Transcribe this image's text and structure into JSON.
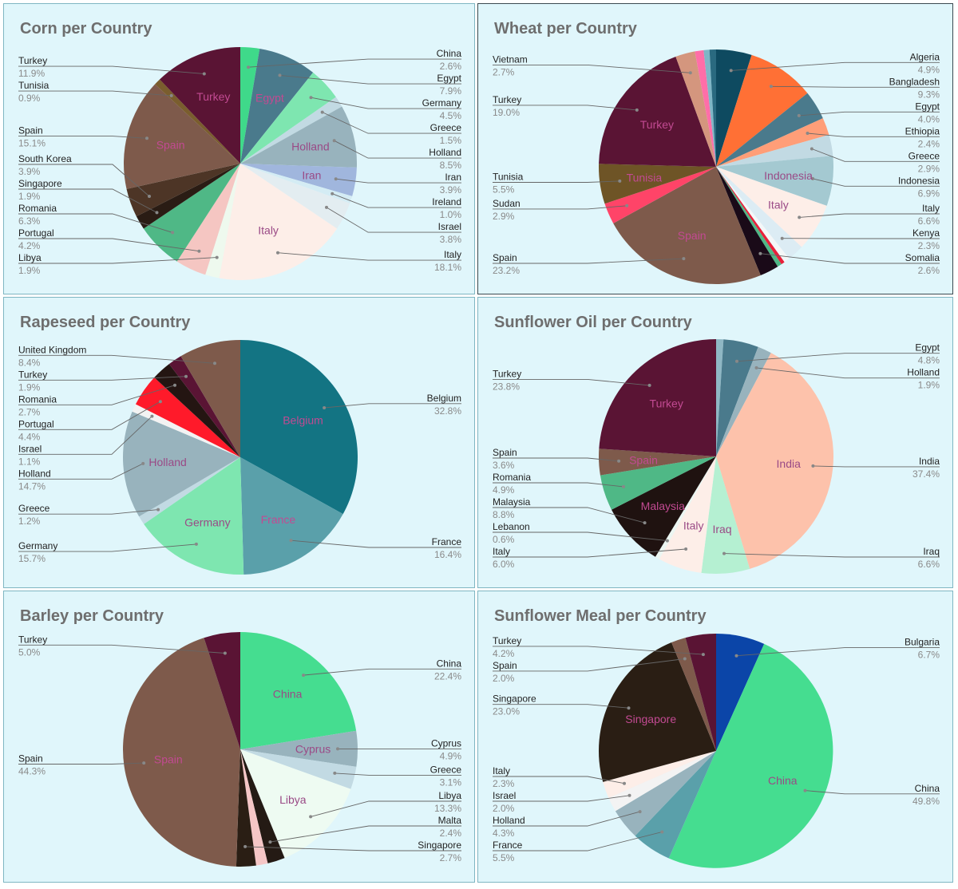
{
  "chart_data": [
    {
      "type": "pie",
      "title": "Corn per Country",
      "slices": [
        {
          "name": "China",
          "value": 2.6,
          "color": "#3fd98a"
        },
        {
          "name": "Egypt",
          "value": 7.9,
          "color": "#4a7a8c"
        },
        {
          "name": "Germany",
          "value": 4.5,
          "color": "#7ee6b0"
        },
        {
          "name": "Greece",
          "value": 1.5,
          "color": "#c2dae3"
        },
        {
          "name": "Holland",
          "value": 8.5,
          "color": "#98b3bd"
        },
        {
          "name": "Iran",
          "value": 3.9,
          "color": "#a0b6dd"
        },
        {
          "name": "Ireland",
          "value": 1.0,
          "color": "#d4ecf4"
        },
        {
          "name": "Israel",
          "value": 3.8,
          "color": "#e3edf1"
        },
        {
          "name": "Italy",
          "value": 18.1,
          "color": "#fdeee8"
        },
        {
          "name": "Libya",
          "value": 1.9,
          "color": "#eef9ee"
        },
        {
          "name": "Portugal",
          "value": 4.2,
          "color": "#f5c6c2"
        },
        {
          "name": "Romania",
          "value": 6.3,
          "color": "#4fb886"
        },
        {
          "name": "Singapore",
          "value": 1.9,
          "color": "#2a1c14"
        },
        {
          "name": "South Korea",
          "value": 3.9,
          "color": "#4d3526"
        },
        {
          "name": "Spain",
          "value": 15.1,
          "color": "#7e5a4b"
        },
        {
          "name": "Tunisia",
          "value": 0.9,
          "color": "#7a5d2e"
        },
        {
          "name": "Turkey",
          "value": 11.9,
          "color": "#5a1434"
        }
      ],
      "inside_labels": [
        "Egypt",
        "Holland",
        "Iran",
        "Italy",
        "Spain",
        "Turkey"
      ]
    },
    {
      "type": "pie",
      "title": "Wheat per Country",
      "slices": [
        {
          "name": "Algeria",
          "value": 4.9,
          "color": "#0e4a60"
        },
        {
          "name": "Bangladesh",
          "value": 9.3,
          "color": "#ff7035"
        },
        {
          "name": "Egypt",
          "value": 4.0,
          "color": "#4a7a8c"
        },
        {
          "name": "Ethiopia",
          "value": 2.4,
          "color": "#ff9e78"
        },
        {
          "name": "Greece",
          "value": 2.9,
          "color": "#c2dae3"
        },
        {
          "name": "Indonesia",
          "value": 6.9,
          "color": "#a4c9d1"
        },
        {
          "name": "Italy",
          "value": 6.6,
          "color": "#fdeee8"
        },
        {
          "name": "Kenya",
          "value": 2.3,
          "color": "#dcecf4"
        },
        {
          "name": "",
          "value": 0.8,
          "color": "#f4f7f8"
        },
        {
          "name": "",
          "value": 0.5,
          "color": "#e8203a"
        },
        {
          "name": "",
          "value": 0.6,
          "color": "#4fb886"
        },
        {
          "name": "Somalia",
          "value": 2.6,
          "color": "#1a0a18"
        },
        {
          "name": "Spain",
          "value": 23.2,
          "color": "#7e5a4b"
        },
        {
          "name": "Sudan",
          "value": 2.9,
          "color": "#ff4468"
        },
        {
          "name": "Tunisia",
          "value": 5.5,
          "color": "#6e5426"
        },
        {
          "name": "Turkey",
          "value": 19.0,
          "color": "#5a1434"
        },
        {
          "name": "Vietnam",
          "value": 2.7,
          "color": "#d4967e"
        },
        {
          "name": "",
          "value": 1.2,
          "color": "#ff6ea8"
        },
        {
          "name": "",
          "value": 0.8,
          "color": "#7fb6c6"
        },
        {
          "name": "",
          "value": 0.9,
          "color": "#2a6a80"
        }
      ],
      "inside_labels": [
        "Turkey",
        "Tunisia",
        "Spain",
        "Indonesia",
        "Italy"
      ]
    },
    {
      "type": "pie",
      "title": "Rapeseed per Country",
      "slices": [
        {
          "name": "Belgium",
          "value": 32.8,
          "color": "#137483"
        },
        {
          "name": "France",
          "value": 16.4,
          "color": "#5aa0aa"
        },
        {
          "name": "Germany",
          "value": 15.7,
          "color": "#7ee6b0"
        },
        {
          "name": "Greece",
          "value": 1.2,
          "color": "#c2dae3"
        },
        {
          "name": "Holland",
          "value": 14.7,
          "color": "#98b3bd"
        },
        {
          "name": "Israel",
          "value": 1.1,
          "color": "#f3f3f3"
        },
        {
          "name": "Portugal",
          "value": 4.4,
          "color": "#ff1a2a"
        },
        {
          "name": "Romania",
          "value": 2.7,
          "color": "#241512"
        },
        {
          "name": "Turkey",
          "value": 1.9,
          "color": "#5a1434"
        },
        {
          "name": "United Kingdom",
          "value": 8.4,
          "color": "#7e5a4b"
        }
      ],
      "inside_labels": [
        "Belgium",
        "France",
        "Germany",
        "Holland"
      ]
    },
    {
      "type": "pie",
      "title": "Sunflower Oil per Country",
      "slices": [
        {
          "name": "",
          "value": 1.0,
          "color": "#8fb7c4"
        },
        {
          "name": "Egypt",
          "value": 4.8,
          "color": "#4a7a8c"
        },
        {
          "name": "Holland",
          "value": 1.9,
          "color": "#98b3bd"
        },
        {
          "name": "India",
          "value": 37.4,
          "color": "#fdc2ab"
        },
        {
          "name": "Iraq",
          "value": 6.6,
          "color": "#b5f0d2"
        },
        {
          "name": "Italy",
          "value": 6.0,
          "color": "#fdeee8"
        },
        {
          "name": "Lebanon",
          "value": 0.6,
          "color": "#ecf6f2"
        },
        {
          "name": "Malaysia",
          "value": 8.8,
          "color": "#1f1210"
        },
        {
          "name": "Romania",
          "value": 4.9,
          "color": "#4fb886"
        },
        {
          "name": "Spain",
          "value": 3.6,
          "color": "#7e5a4b"
        },
        {
          "name": "Turkey",
          "value": 23.8,
          "color": "#5a1434"
        }
      ],
      "inside_labels": [
        "Turkey",
        "Spain",
        "India",
        "Malaysia",
        "Italy",
        "Iraq"
      ]
    },
    {
      "type": "pie",
      "title": "Barley per Country",
      "slices": [
        {
          "name": "China",
          "value": 22.4,
          "color": "#45dd90"
        },
        {
          "name": "Cyprus",
          "value": 4.9,
          "color": "#98b3bd"
        },
        {
          "name": "Greece",
          "value": 3.1,
          "color": "#c2dae3"
        },
        {
          "name": "Libya",
          "value": 13.3,
          "color": "#eefbf2"
        },
        {
          "name": "Malta",
          "value": 2.4,
          "color": "#241a14"
        },
        {
          "name": "",
          "value": 1.6,
          "color": "#f5c6c6"
        },
        {
          "name": "Singapore",
          "value": 2.7,
          "color": "#2a1e14"
        },
        {
          "name": "Spain",
          "value": 44.3,
          "color": "#7e5a4b"
        },
        {
          "name": "Turkey",
          "value": 5.0,
          "color": "#5a1434"
        }
      ],
      "inside_labels": [
        "China",
        "Cyprus",
        "Libya",
        "Spain"
      ]
    },
    {
      "type": "pie",
      "title": "Sunflower Meal per Country",
      "slices": [
        {
          "name": "Bulgaria",
          "value": 6.7,
          "color": "#0b45a8"
        },
        {
          "name": "China",
          "value": 49.8,
          "color": "#45dd90"
        },
        {
          "name": "France",
          "value": 5.5,
          "color": "#5aa0aa"
        },
        {
          "name": "Holland",
          "value": 4.3,
          "color": "#98b3bd"
        },
        {
          "name": "Israel",
          "value": 2.0,
          "color": "#f3f3f3"
        },
        {
          "name": "Italy",
          "value": 2.3,
          "color": "#fdeee8"
        },
        {
          "name": "Singapore",
          "value": 23.0,
          "color": "#2a1e14"
        },
        {
          "name": "Spain",
          "value": 2.0,
          "color": "#7e5a4b"
        },
        {
          "name": "Turkey",
          "value": 4.2,
          "color": "#5a1434"
        }
      ],
      "inside_labels": [
        "China",
        "Singapore"
      ]
    }
  ]
}
